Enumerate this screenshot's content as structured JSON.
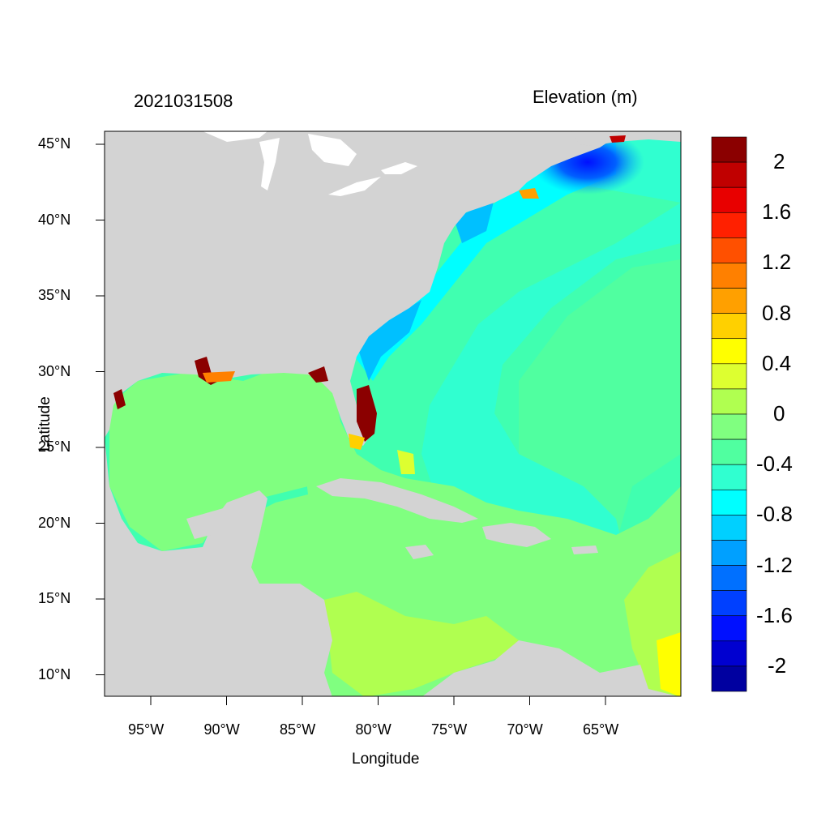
{
  "map": {
    "date": "2021031508",
    "units_title": "Elevation (m)",
    "xlabel": "Longitude",
    "ylabel": "Latitude",
    "lon_ticks": [
      "95°W",
      "90°W",
      "85°W",
      "80°W",
      "75°W",
      "70°W",
      "65°W"
    ],
    "lat_ticks": [
      "45°N",
      "40°N",
      "35°N",
      "30°N",
      "25°N",
      "20°N",
      "15°N",
      "10°N"
    ],
    "lon_range": [
      -98,
      -60
    ],
    "lat_range": [
      8.5,
      46
    ],
    "land_color": "#d3d3d3",
    "water_color": "#ffffff"
  },
  "colorbar": {
    "labels": [
      "2",
      "1.6",
      "1.2",
      "0.8",
      "0.4",
      "0",
      "-0.4",
      "-0.8",
      "-1.2",
      "-1.6",
      "-2"
    ],
    "colors": [
      "#8b0000",
      "#c00000",
      "#e80000",
      "#ff2000",
      "#ff5000",
      "#ff8000",
      "#ffa000",
      "#ffd000",
      "#ffff00",
      "#ddff30",
      "#b0ff50",
      "#80ff80",
      "#50ffa0",
      "#30ffd0",
      "#00ffff",
      "#00d0ff",
      "#00a0ff",
      "#0070ff",
      "#0040ff",
      "#0010ff",
      "#0000d0",
      "#0000a0"
    ]
  }
}
